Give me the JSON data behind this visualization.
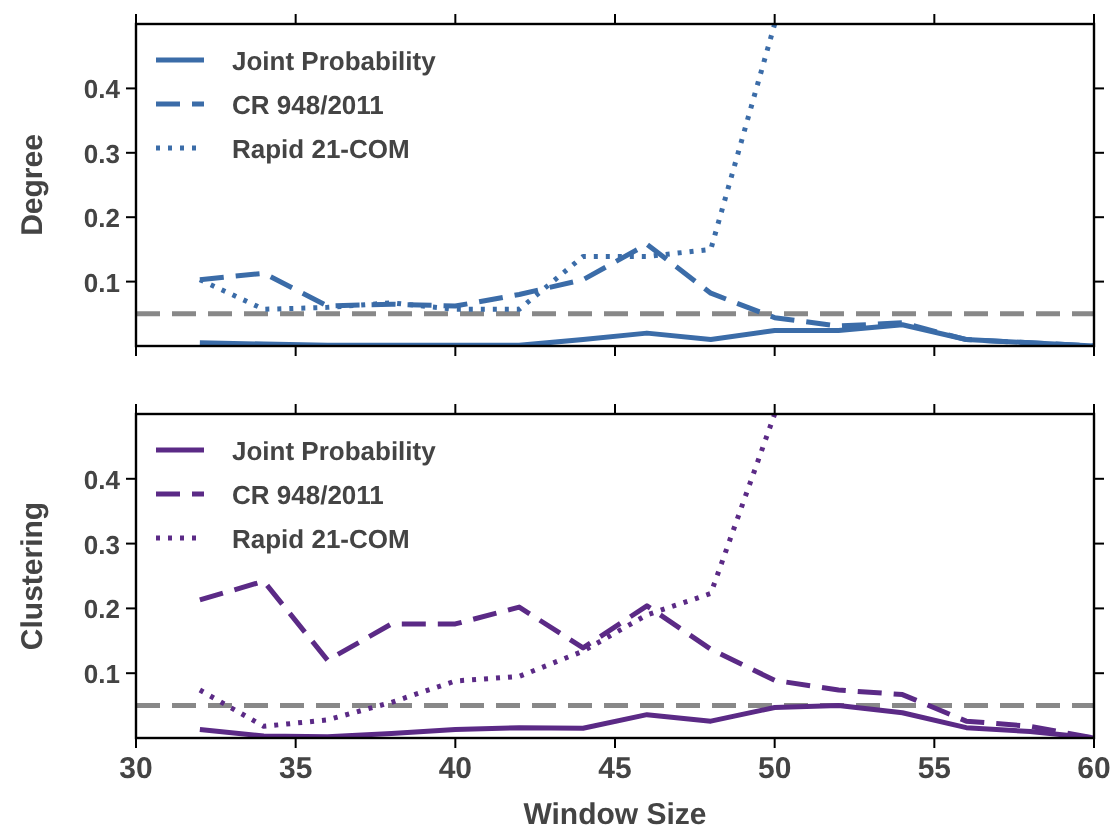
{
  "chart_data": [
    {
      "type": "line",
      "ylabel": "Degree",
      "x": [
        32,
        34,
        36,
        38,
        40,
        42,
        44,
        46,
        48,
        50,
        52,
        54,
        56,
        58,
        60
      ],
      "xlim": [
        30,
        60
      ],
      "xticks": [
        30,
        35,
        40,
        45,
        50,
        55,
        60
      ],
      "ylim": [
        0,
        0.5
      ],
      "yticks": [
        0.1,
        0.2,
        0.3,
        0.4
      ],
      "tick_labels": "y",
      "legend": "top left",
      "grid": false,
      "ref_lines": [
        {
          "axis": "y",
          "value": 0.05,
          "color": "#888888",
          "line_style": "dashed"
        }
      ],
      "series": [
        {
          "name": "Joint Probability",
          "color": "#3b6ca8",
          "line_style": "solid",
          "values": [
            0.005,
            0.003,
            0.001,
            0.001,
            0.001,
            0.001,
            0.01,
            0.02,
            0.01,
            0.024,
            0.024,
            0.033,
            0.01,
            0.005,
            0
          ]
        },
        {
          "name": "CR 948/2011",
          "color": "#3b6ca8",
          "line_style": "dashed",
          "values": [
            0.103,
            0.113,
            0.062,
            0.065,
            0.062,
            0.08,
            0.103,
            0.158,
            0.082,
            0.044,
            0.031,
            0.036,
            0.01,
            0.005,
            0
          ]
        },
        {
          "name": "Rapid 21-COM",
          "color": "#3b6ca8",
          "line_style": "dotted",
          "values": [
            0.103,
            0.057,
            0.06,
            0.067,
            0.057,
            0.057,
            0.139,
            0.139,
            0.15,
            0.5,
            null,
            null,
            null,
            null,
            null
          ]
        }
      ]
    },
    {
      "type": "line",
      "ylabel": "Clustering",
      "xlabel": "Window Size",
      "x": [
        32,
        34,
        36,
        38,
        40,
        42,
        44,
        46,
        48,
        50,
        52,
        54,
        56,
        58,
        60
      ],
      "xlim": [
        30,
        60
      ],
      "xticks": [
        30,
        35,
        40,
        45,
        50,
        55,
        60
      ],
      "ylim": [
        0,
        0.5
      ],
      "yticks": [
        0.1,
        0.2,
        0.3,
        0.4
      ],
      "legend": "top left",
      "grid": false,
      "ref_lines": [
        {
          "axis": "y",
          "value": 0.05,
          "color": "#888888",
          "line_style": "dashed"
        }
      ],
      "series": [
        {
          "name": "Joint Probability",
          "color": "#5b2a86",
          "line_style": "solid",
          "values": [
            0.013,
            0.003,
            0.002,
            0.007,
            0.013,
            0.016,
            0.015,
            0.036,
            0.026,
            0.047,
            0.05,
            0.039,
            0.016,
            0.01,
            0
          ]
        },
        {
          "name": "CR 948/2011",
          "color": "#5b2a86",
          "line_style": "dashed",
          "values": [
            0.213,
            0.242,
            0.12,
            0.176,
            0.176,
            0.202,
            0.139,
            0.204,
            0.137,
            0.089,
            0.074,
            0.067,
            0.026,
            0.018,
            0
          ]
        },
        {
          "name": "Rapid 21-COM",
          "color": "#5b2a86",
          "line_style": "dotted",
          "values": [
            0.074,
            0.018,
            0.028,
            0.055,
            0.088,
            0.095,
            0.134,
            0.19,
            0.223,
            0.5,
            null,
            null,
            null,
            null,
            null
          ]
        }
      ]
    }
  ]
}
